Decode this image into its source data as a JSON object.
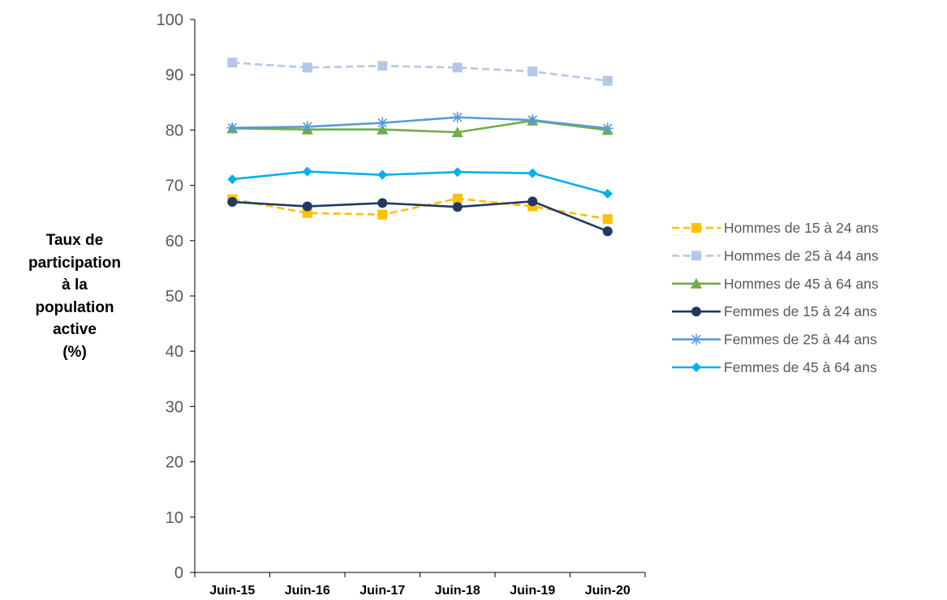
{
  "chart_data": {
    "type": "line",
    "categories": [
      "Juin-15",
      "Juin-16",
      "Juin-17",
      "Juin-18",
      "Juin-19",
      "Juin-20"
    ],
    "ylabel_lines": [
      "Taux de",
      "participation",
      "à la",
      "population",
      "active",
      "(%)"
    ],
    "ylim": [
      0,
      100
    ],
    "yticks": [
      "0",
      "10",
      "20",
      "30",
      "40",
      "50",
      "60",
      "70",
      "80",
      "90",
      "100"
    ],
    "grid": false,
    "legend_position": "right",
    "series": [
      {
        "name": "Hommes de 15 à 24 ans",
        "values": [
          67.5,
          65.0,
          64.7,
          67.6,
          66.2,
          63.9
        ],
        "color": "#FFC000",
        "dashed": true,
        "marker": "square"
      },
      {
        "name": "Hommes de 25 à 44 ans",
        "values": [
          92.2,
          91.3,
          91.6,
          91.3,
          90.6,
          88.9
        ],
        "color": "#B4C7E7",
        "dashed": true,
        "marker": "square"
      },
      {
        "name": "Hommes de 45 à 64 ans",
        "values": [
          80.3,
          80.1,
          80.1,
          79.6,
          81.7,
          80.0
        ],
        "color": "#70AD47",
        "dashed": false,
        "marker": "triangle"
      },
      {
        "name": "Femmes de 15 à 24 ans",
        "values": [
          67.0,
          66.2,
          66.8,
          66.1,
          67.1,
          61.7
        ],
        "color": "#203864",
        "dashed": false,
        "marker": "circle"
      },
      {
        "name": "Femmes de 25 à 44 ans",
        "values": [
          80.4,
          80.6,
          81.3,
          82.3,
          81.8,
          80.3
        ],
        "color": "#5B9BD5",
        "dashed": false,
        "marker": "star"
      },
      {
        "name": "Femmes de 45 à 64 ans",
        "values": [
          71.1,
          72.5,
          71.9,
          72.4,
          72.2,
          68.5
        ],
        "color": "#00B0F0",
        "dashed": false,
        "marker": "diamond"
      }
    ]
  }
}
